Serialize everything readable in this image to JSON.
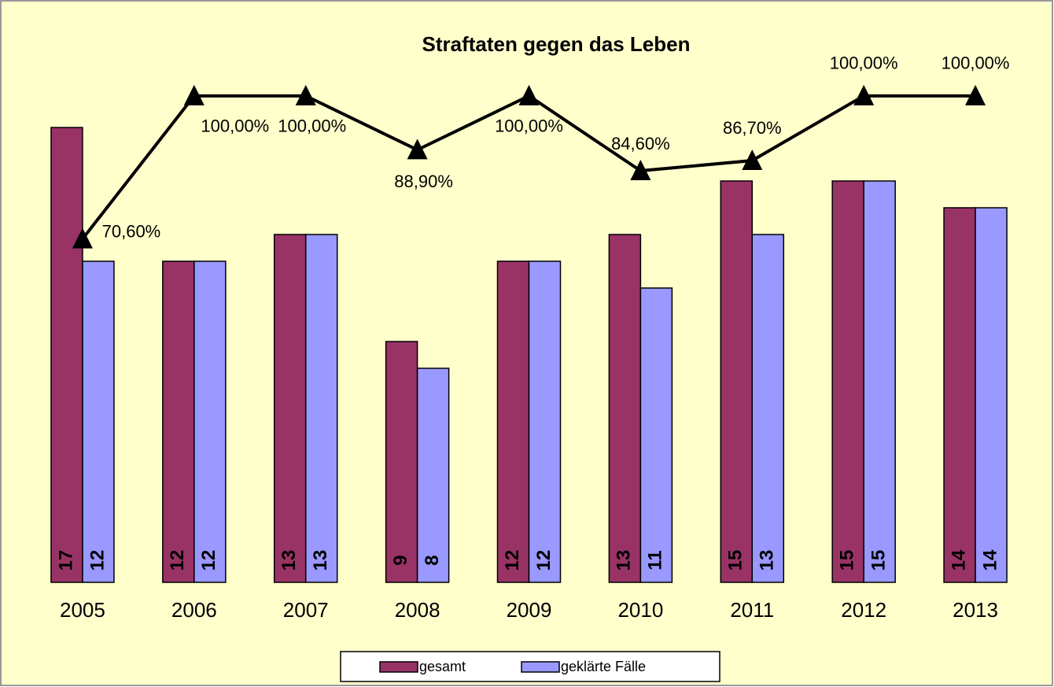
{
  "chart_data": {
    "type": "bar_line",
    "title": "Straftaten gegen das Leben",
    "categories": [
      "2005",
      "2006",
      "2007",
      "2008",
      "2009",
      "2010",
      "2011",
      "2012",
      "2013"
    ],
    "series": [
      {
        "name": "gesamt",
        "color": "#993366",
        "values": [
          17,
          12,
          13,
          9,
          12,
          13,
          15,
          15,
          14
        ]
      },
      {
        "name": "geklärte Fälle",
        "color": "#9999ff",
        "values": [
          12,
          12,
          13,
          8,
          12,
          11,
          13,
          15,
          14
        ]
      },
      {
        "type": "line",
        "axis": "y2",
        "color": "#000000",
        "values": [
          70.6,
          100,
          100,
          88.9,
          100,
          84.6,
          86.7,
          100,
          100
        ],
        "value_labels": [
          "70,60%",
          "100,00%",
          "100,00%",
          "88,90%",
          "100,00%",
          "84,60%",
          "86,70%",
          "100,00%",
          "100,00%"
        ]
      }
    ],
    "ylim": [
      0,
      20
    ],
    "y2lim": [
      0,
      110
    ],
    "legend": "bottom"
  }
}
